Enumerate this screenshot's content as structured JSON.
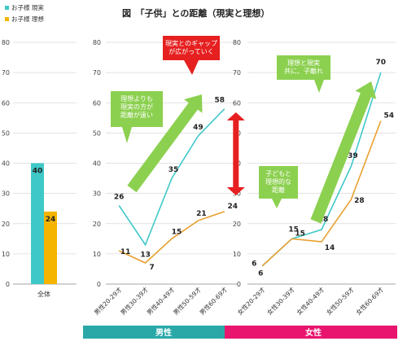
{
  "title": "図　「子供」との距離（現実と理想）",
  "legend": [
    {
      "label": "お子様 現実",
      "color": "#3fc8c8"
    },
    {
      "label": "お子様 理想",
      "color": "#f5b400"
    }
  ],
  "colors": {
    "real": "#3fc8c8",
    "ideal": "#e8a030",
    "idealBar": "#f5b400",
    "male_band": "#2aa8a8",
    "female_band": "#e8146e",
    "arrow_green": "#8cd050",
    "callout_green": "#8cd050",
    "callout_red": "#e62020",
    "double_arrow": "#e62020",
    "grid": "#d9d9d9",
    "axis_text": "#444444"
  },
  "chart_data": [
    {
      "type": "bar",
      "categories": [
        "全体"
      ],
      "series": [
        {
          "name": "お子様 現実",
          "values": [
            40
          ]
        },
        {
          "name": "お子様 理想",
          "values": [
            24
          ]
        }
      ],
      "ylim": [
        0,
        80
      ],
      "yticks": [
        "0",
        "10",
        "20",
        "30",
        "40",
        "50",
        "60",
        "70",
        "80"
      ],
      "grid": true
    },
    {
      "type": "line",
      "categories": [
        "男性20-29才",
        "男性30-39才",
        "男性40-49才",
        "男性50-59才",
        "男性60-69才"
      ],
      "series": [
        {
          "name": "お子様 現実",
          "values": [
            26,
            13,
            35,
            49,
            58
          ]
        },
        {
          "name": "お子様 理想",
          "values": [
            11,
            7,
            15,
            21,
            24
          ]
        }
      ],
      "ylim": [
        0,
        80
      ],
      "yticks": [
        "0",
        "10",
        "20",
        "30",
        "40",
        "50",
        "60",
        "70",
        "80"
      ],
      "grid": true,
      "band_label": "男性",
      "annotations": [
        "理想よりも\n現実の方が\n距離が遠い",
        "現実とのギャップ\nが広がっていく"
      ]
    },
    {
      "type": "line",
      "categories": [
        "女性20-29才",
        "女性30-39才",
        "女性40-49才",
        "女性50-59才",
        "女性60-69才"
      ],
      "series": [
        {
          "name": "お子様 現実",
          "values": [
            6,
            15,
            18,
            39,
            70
          ]
        },
        {
          "name": "お子様 理想",
          "values": [
            6,
            15,
            14,
            28,
            54
          ]
        }
      ],
      "ylim": [
        0,
        80
      ],
      "yticks": [
        "0",
        "10",
        "20",
        "30",
        "40",
        "50",
        "60",
        "70",
        "80"
      ],
      "grid": true,
      "band_label": "女性",
      "annotations": [
        "理想と現実\n共に、子離れ",
        "子どもと\n理想的な\n距離"
      ]
    }
  ]
}
